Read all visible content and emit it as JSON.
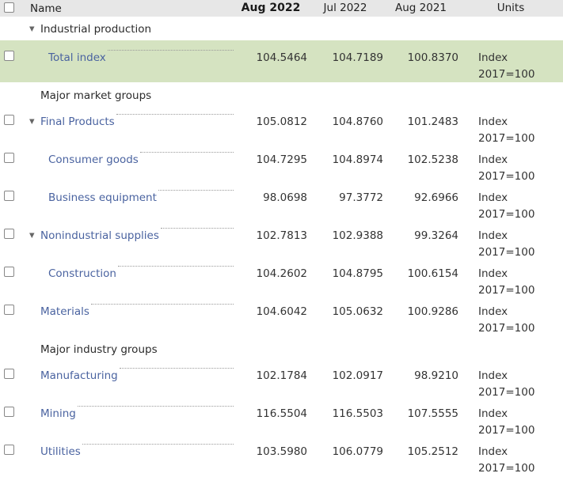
{
  "colors": {
    "header_bg": "#e7e7e7",
    "highlight_row_bg": "#d5e3c1",
    "link": "#4a63a0",
    "text": "#333333",
    "leader": "#9a9a9a"
  },
  "icons": {
    "collapse_toggle": "▼"
  },
  "header": {
    "name": "Name",
    "aug2022": "Aug 2022",
    "jul2022": "Jul 2022",
    "aug2021": "Aug 2021",
    "units": "Units"
  },
  "rows": [
    {
      "type": "group",
      "label": "Industrial production"
    },
    {
      "type": "data",
      "label": "Total index",
      "highlighted": true,
      "aug2022": "104.5464",
      "jul2022": "104.7189",
      "aug2021": "100.8370",
      "units1": "Index",
      "units2": "2017=100"
    },
    {
      "type": "section",
      "label": "Major market groups"
    },
    {
      "type": "data",
      "label": "Final Products",
      "expandable": true,
      "aug2022": "105.0812",
      "jul2022": "104.8760",
      "aug2021": "101.2483",
      "units1": "Index",
      "units2": "2017=100"
    },
    {
      "type": "data",
      "label": "Consumer goods",
      "child": true,
      "aug2022": "104.7295",
      "jul2022": "104.8974",
      "aug2021": "102.5238",
      "units1": "Index",
      "units2": "2017=100"
    },
    {
      "type": "data",
      "label": "Business equipment",
      "child": true,
      "aug2022": "98.0698",
      "jul2022": "97.3772",
      "aug2021": "92.6966",
      "units1": "Index",
      "units2": "2017=100"
    },
    {
      "type": "data",
      "label": "Nonindustrial supplies",
      "expandable": true,
      "aug2022": "102.7813",
      "jul2022": "102.9388",
      "aug2021": "99.3264",
      "units1": "Index",
      "units2": "2017=100"
    },
    {
      "type": "data",
      "label": "Construction",
      "child": true,
      "aug2022": "104.2602",
      "jul2022": "104.8795",
      "aug2021": "100.6154",
      "units1": "Index",
      "units2": "2017=100"
    },
    {
      "type": "data",
      "label": "Materials",
      "aug2022": "104.6042",
      "jul2022": "105.0632",
      "aug2021": "100.9286",
      "units1": "Index",
      "units2": "2017=100"
    },
    {
      "type": "section",
      "label": "Major industry groups"
    },
    {
      "type": "data",
      "label": "Manufacturing",
      "aug2022": "102.1784",
      "jul2022": "102.0917",
      "aug2021": "98.9210",
      "units1": "Index",
      "units2": "2017=100"
    },
    {
      "type": "data",
      "label": "Mining",
      "aug2022": "116.5504",
      "jul2022": "116.5503",
      "aug2021": "107.5555",
      "units1": "Index",
      "units2": "2017=100"
    },
    {
      "type": "data",
      "label": "Utilities",
      "aug2022": "103.5980",
      "jul2022": "106.0779",
      "aug2021": "105.2512",
      "units1": "Index",
      "units2": "2017=100"
    }
  ]
}
